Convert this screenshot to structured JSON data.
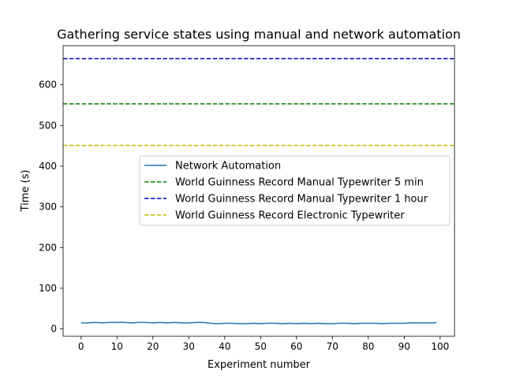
{
  "chart_data": {
    "type": "line",
    "title": "Gathering service states using manual and network automation",
    "xlabel": "Experiment number",
    "ylabel": "Time (s)",
    "xlim": [
      -5,
      104
    ],
    "ylim": [
      -18,
      696
    ],
    "xticks": [
      0,
      10,
      20,
      30,
      40,
      50,
      60,
      70,
      80,
      90,
      100
    ],
    "yticks": [
      0,
      100,
      200,
      300,
      400,
      500,
      600
    ],
    "grid": false,
    "legend_position": "center-right",
    "series": [
      {
        "name": "Network Automation",
        "color": "#1f77b4",
        "style": "solid",
        "x": [
          0,
          2,
          4,
          6,
          8,
          10,
          12,
          14,
          16,
          18,
          20,
          22,
          24,
          26,
          28,
          30,
          32,
          34,
          36,
          38,
          40,
          42,
          44,
          46,
          48,
          50,
          52,
          54,
          56,
          58,
          60,
          62,
          64,
          66,
          68,
          70,
          72,
          74,
          76,
          78,
          80,
          82,
          84,
          86,
          88,
          90,
          92,
          94,
          96,
          98,
          99
        ],
        "y": [
          15,
          15,
          16,
          15,
          16,
          16,
          16,
          15,
          16,
          16,
          15,
          16,
          15,
          16,
          15,
          15,
          16,
          16,
          14,
          13,
          14,
          14,
          13,
          13,
          14,
          13,
          14,
          14,
          13,
          14,
          13,
          14,
          13,
          14,
          13,
          13,
          14,
          14,
          13,
          14,
          14,
          14,
          13,
          14,
          14,
          14,
          15,
          15,
          15,
          15,
          16
        ]
      },
      {
        "name": "World Guinness Record Manual Typewriter 5 min",
        "color": "#008000",
        "style": "dashed",
        "y_const": 553
      },
      {
        "name": "World Guinness Record Manual Typewriter 1 hour",
        "color": "#0000bf",
        "style": "dashed",
        "y_const": 664
      },
      {
        "name": "World Guinness Record Electronic Typewriter",
        "color": "#bfbf00",
        "style": "dashed",
        "y_const": 451
      }
    ]
  }
}
